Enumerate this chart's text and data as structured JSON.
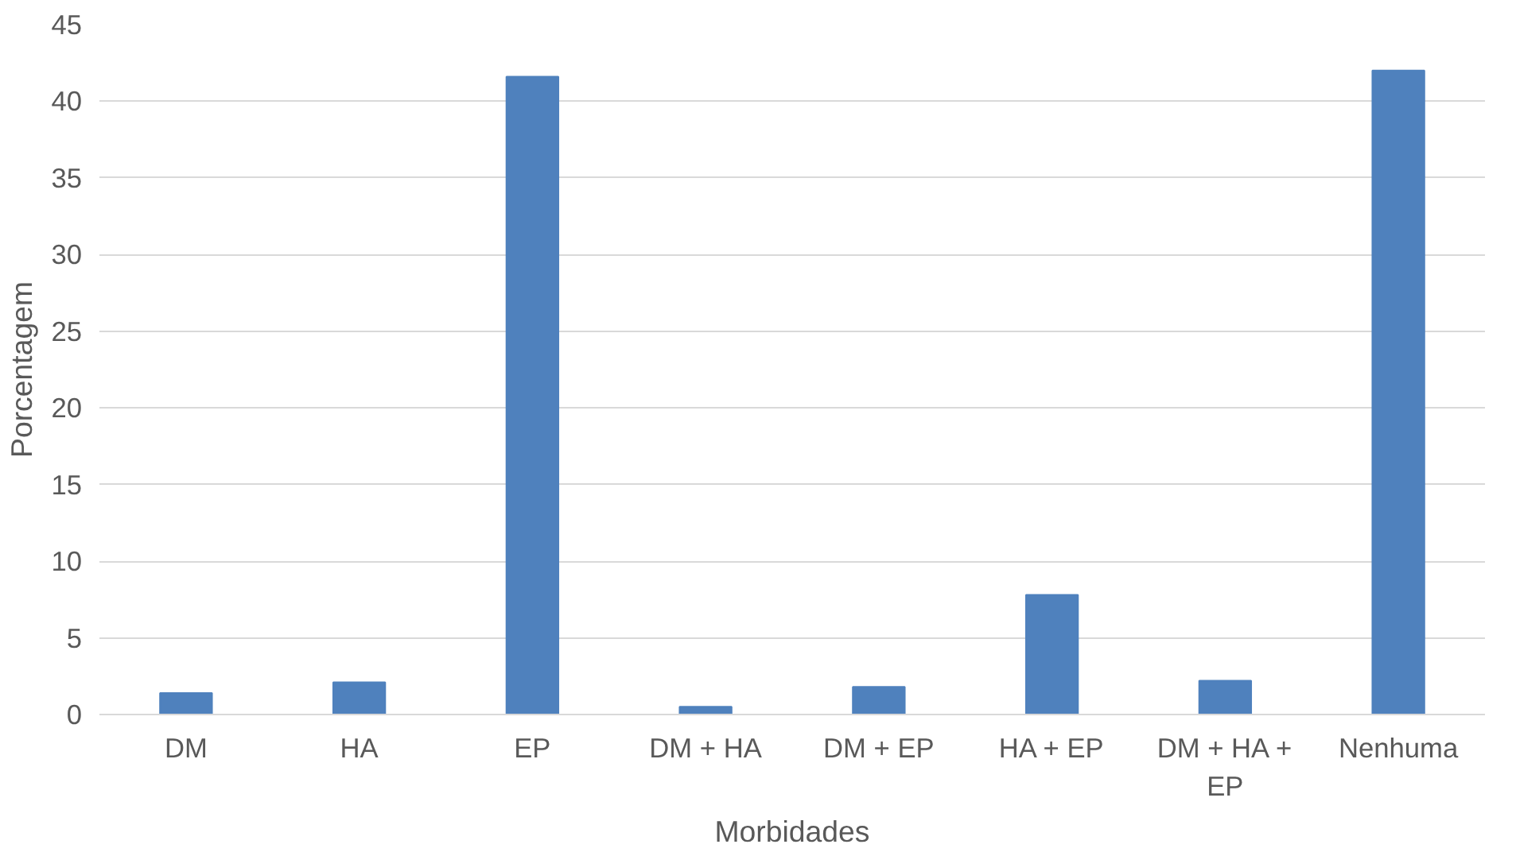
{
  "chart_data": {
    "type": "bar",
    "xlabel": "Morbidades",
    "ylabel": "Porcentagem",
    "categories": [
      "DM",
      "HA",
      "EP",
      "DM + HA",
      "DM + EP",
      "HA + EP",
      "DM + HA + EP",
      "Nenhuma"
    ],
    "values": [
      1.4,
      2.1,
      41.6,
      0.5,
      1.8,
      7.8,
      2.2,
      42.0
    ],
    "color": "#4f81bd",
    "ylim": [
      0,
      45
    ],
    "yticks": [
      0,
      5,
      10,
      15,
      20,
      25,
      30,
      35,
      40,
      45
    ],
    "grid": "y"
  }
}
